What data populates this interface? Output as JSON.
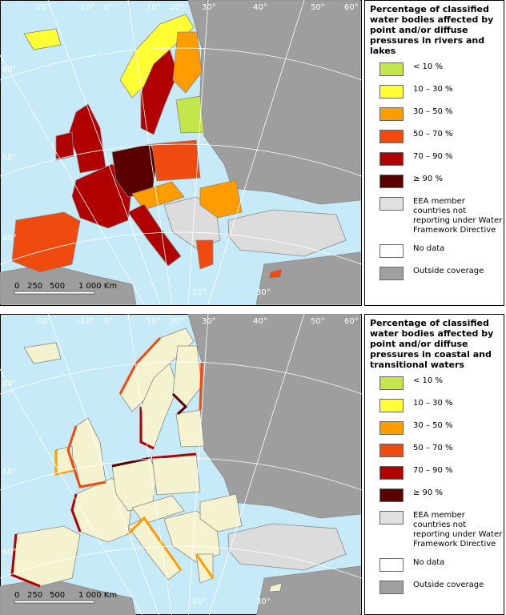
{
  "maps": [
    {
      "graticule": {
        "top": [
          "-20°",
          "-10°",
          "0°",
          "10°",
          "20°",
          "30°",
          "40°",
          "50°",
          "60°"
        ],
        "left": [
          "60°",
          "50°",
          "40°"
        ],
        "bottom": [
          "20°",
          "30°"
        ]
      },
      "scale": [
        "0",
        "250",
        "500",
        "1 000 Km"
      ],
      "legend": {
        "title": "Percentage of classified water bodies affected by point and/or diffuse pressures in rivers and lakes",
        "items": [
          {
            "label": "< 10 %",
            "color": "#c4e64a"
          },
          {
            "label": "10 – 30 %",
            "color": "#ffff33"
          },
          {
            "label": "30 – 50 %",
            "color": "#ff9c00"
          },
          {
            "label": "50 – 70 %",
            "color": "#ef4a0f"
          },
          {
            "label": "70 – 90 %",
            "color": "#b00000"
          },
          {
            "label": "≥ 90 %",
            "color": "#5a0000"
          },
          {
            "label": "EEA member countries not reporting under Water Framework Directive",
            "color": "#e0e0e0"
          },
          {
            "label": "No data",
            "color": "#ffffff"
          },
          {
            "label": "Outside coverage",
            "color": "#a0a0a0"
          }
        ]
      }
    },
    {
      "graticule": {
        "top": [
          "-20°",
          "-10°",
          "0°",
          "10°",
          "20°",
          "30°",
          "40°",
          "50°",
          "60°"
        ],
        "left": [
          "60°",
          "50°",
          "40°"
        ],
        "bottom": [
          "20°",
          "30°"
        ]
      },
      "scale": [
        "0",
        "250",
        "500",
        "1 000 Km"
      ],
      "legend": {
        "title": "Percentage of classified water bodies affected by point and/or diffuse pressures in coastal and transitional waters",
        "items": [
          {
            "label": "< 10 %",
            "color": "#c4e64a"
          },
          {
            "label": "10 – 30 %",
            "color": "#ffff33"
          },
          {
            "label": "30 – 50 %",
            "color": "#ff9c00"
          },
          {
            "label": "50 – 70 %",
            "color": "#ef4a0f"
          },
          {
            "label": "70 – 90 %",
            "color": "#b00000"
          },
          {
            "label": "≥ 90 %",
            "color": "#5a0000"
          },
          {
            "label": "EEA member countries not reporting under Water Framework Directive",
            "color": "#e0e0e0"
          },
          {
            "label": "No data",
            "color": "#ffffff"
          },
          {
            "label": "Outside coverage",
            "color": "#a0a0a0"
          }
        ]
      }
    }
  ]
}
